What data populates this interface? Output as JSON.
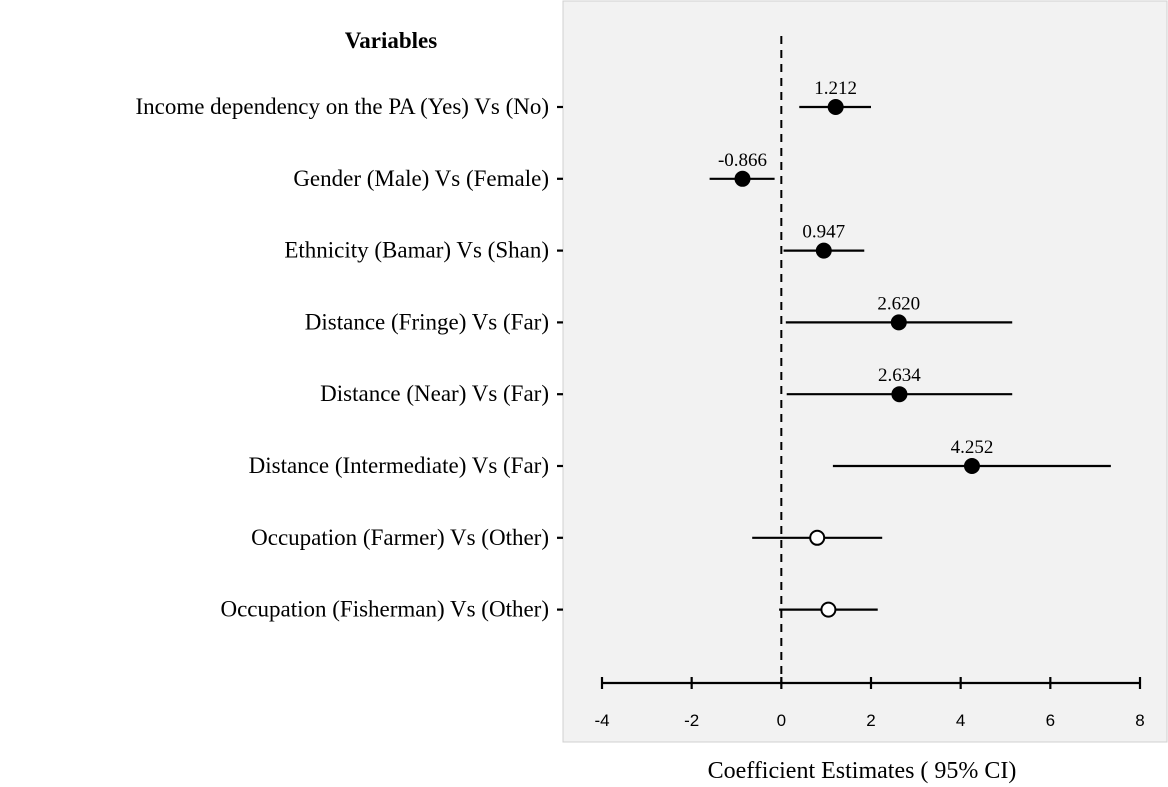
{
  "chart_data": {
    "type": "scatter",
    "subtype": "forest-plot",
    "header": "Variables",
    "xlabel": "Coefficient Estimates ( 95% CI)",
    "xlim": [
      -4,
      8
    ],
    "xticks": [
      -4,
      -2,
      0,
      2,
      4,
      6,
      8
    ],
    "reference_line": 0,
    "grid": false,
    "rows": [
      {
        "label": "Income dependency on the PA (Yes) Vs (No)",
        "estimate": 1.212,
        "ci_low": 0.4,
        "ci_high": 2.0,
        "value_label": "1.212",
        "significant": true
      },
      {
        "label": "Gender (Male) Vs (Female)",
        "estimate": -0.866,
        "ci_low": -1.6,
        "ci_high": -0.15,
        "value_label": "-0.866",
        "significant": true
      },
      {
        "label": "Ethnicity (Bamar) Vs (Shan)",
        "estimate": 0.947,
        "ci_low": 0.05,
        "ci_high": 1.85,
        "value_label": "0.947",
        "significant": true
      },
      {
        "label": "Distance (Fringe) Vs (Far)",
        "estimate": 2.62,
        "ci_low": 0.1,
        "ci_high": 5.15,
        "value_label": "2.620",
        "significant": true
      },
      {
        "label": "Distance (Near) Vs (Far)",
        "estimate": 2.634,
        "ci_low": 0.12,
        "ci_high": 5.15,
        "value_label": "2.634",
        "significant": true
      },
      {
        "label": "Distance (Intermediate) Vs (Far)",
        "estimate": 4.252,
        "ci_low": 1.15,
        "ci_high": 7.35,
        "value_label": "4.252",
        "significant": true
      },
      {
        "label": "Occupation (Farmer) Vs (Other)",
        "estimate": 0.8,
        "ci_low": -0.65,
        "ci_high": 2.25,
        "value_label": "",
        "significant": false
      },
      {
        "label": "Occupation (Fisherman) Vs (Other)",
        "estimate": 1.05,
        "ci_low": -0.05,
        "ci_high": 2.15,
        "value_label": "",
        "significant": false
      }
    ]
  }
}
